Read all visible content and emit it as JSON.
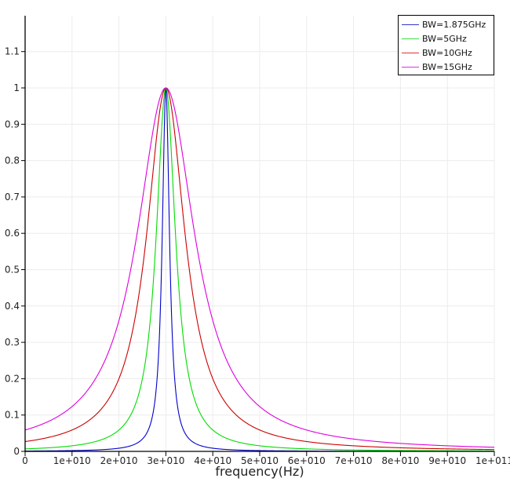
{
  "chart_data": {
    "type": "line",
    "title": "",
    "xlabel": "frequency(Hz)",
    "ylabel": "",
    "xlim": [
      0,
      100000000000
    ],
    "ylim": [
      0,
      1.2
    ],
    "grid": true,
    "legend_position": "top-right",
    "x_ticks": [
      "0",
      "1e+010",
      "2e+010",
      "3e+010",
      "4e+010",
      "5e+010",
      "6e+010",
      "7e+010",
      "8e+010",
      "9e+010",
      "1e+011"
    ],
    "y_ticks": [
      "0",
      "0.1",
      "0.2",
      "0.3",
      "0.4",
      "0.5",
      "0.6",
      "0.7",
      "0.8",
      "0.9",
      "1",
      "1.1"
    ],
    "center_frequency_hz": 30000000000,
    "series": [
      {
        "name": "BW=1.875GHz",
        "color": "#0000cc",
        "bandwidth_hz": 1875000000,
        "peak": 1.0,
        "value_at_0": 0.001
      },
      {
        "name": "BW=5GHz",
        "color": "#00dd00",
        "bandwidth_hz": 5000000000,
        "peak": 1.0,
        "value_at_0": 0.007
      },
      {
        "name": "BW=10GHz",
        "color": "#cc0000",
        "bandwidth_hz": 10000000000,
        "peak": 1.0,
        "value_at_0": 0.027
      },
      {
        "name": "BW=15GHz",
        "color": "#dd00dd",
        "bandwidth_hz": 15000000000,
        "peak": 1.0,
        "value_at_0": 0.059
      }
    ]
  },
  "legend": {
    "items": [
      {
        "label": "BW=1.875GHz",
        "color": "#3333cc"
      },
      {
        "label": "BW=5GHz",
        "color": "#33dd33"
      },
      {
        "label": "BW=10GHz",
        "color": "#dd3333"
      },
      {
        "label": "BW=15GHz",
        "color": "#dd33dd"
      }
    ]
  }
}
